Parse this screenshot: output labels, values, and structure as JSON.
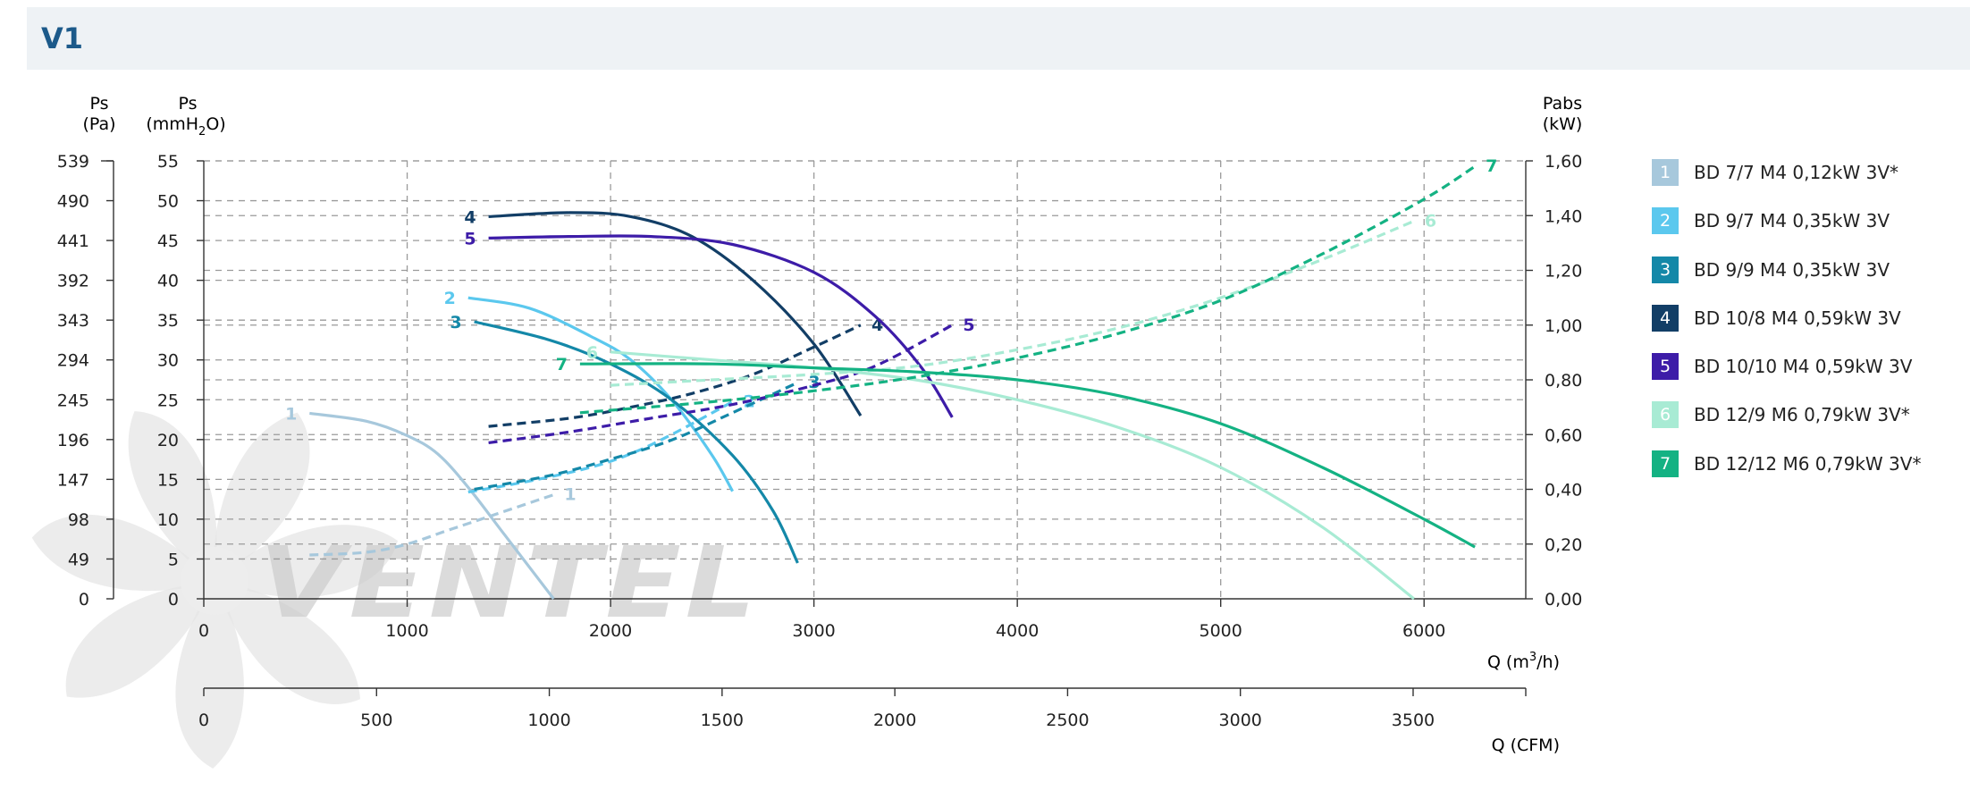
{
  "header": {
    "title": "V1"
  },
  "colors": {
    "1": "#a7c8dc",
    "2": "#5bc8ee",
    "3": "#1488a8",
    "4": "#123e66",
    "5": "#3d1ca8",
    "6": "#a8ebd4",
    "7": "#14b283"
  },
  "chart_data": {
    "type": "line",
    "axes": {
      "left_outer": {
        "label_line1": "Ps",
        "label_line2": "(Pa)",
        "ticks": [
          "0",
          "49",
          "98",
          "147",
          "196",
          "245",
          "294",
          "343",
          "392",
          "441",
          "490",
          "539"
        ]
      },
      "left_inner": {
        "label_line1": "Ps",
        "label_line2_a": "(mmH",
        "label_line2_sub": "2",
        "label_line2_b": "O)",
        "ticks": [
          "0",
          "5",
          "10",
          "15",
          "20",
          "25",
          "30",
          "35",
          "40",
          "45",
          "50",
          "55"
        ],
        "ylim": [
          0,
          55
        ]
      },
      "right": {
        "label_line1": "Pabs",
        "label_line2": "(kW)",
        "ticks": [
          "0,00",
          "0,20",
          "0,40",
          "0,60",
          "0,80",
          "1,00",
          "1,20",
          "1,40",
          "1,60"
        ],
        "ylim": [
          0,
          1.6
        ]
      },
      "x_m3h": {
        "label_a": "Q (m",
        "label_sup": "3",
        "label_b": "/h)",
        "ticks": [
          "0",
          "1000",
          "2000",
          "3000",
          "4000",
          "5000",
          "6000"
        ],
        "xlim": [
          0,
          6500
        ]
      },
      "x_cfm": {
        "label": "Q (CFM)",
        "ticks": [
          "0",
          "500",
          "1000",
          "1500",
          "2000",
          "2500",
          "3000",
          "3500"
        ],
        "xlim": [
          0,
          3826
        ]
      }
    },
    "grid": true,
    "series": [
      {
        "name": "1",
        "legend": "BD 7/7 M4 0,12kW 3V*",
        "color_key": "1",
        "label": "1",
        "pressure": {
          "x": [
            520,
            800,
            1000,
            1150,
            1300,
            1480,
            1720
          ],
          "y": [
            23.3,
            22.3,
            20.5,
            18.2,
            14.0,
            8.0,
            0
          ]
        },
        "power": {
          "x": [
            520,
            800,
            1000,
            1200,
            1400,
            1720
          ],
          "y": [
            0.16,
            0.17,
            0.2,
            0.25,
            0.3,
            0.38
          ]
        }
      },
      {
        "name": "2",
        "legend": "BD 9/7 M4 0,35kW 3V",
        "color_key": "2",
        "label": "2",
        "pressure": {
          "x": [
            1300,
            1600,
            1900,
            2100,
            2300,
            2500,
            2600
          ],
          "y": [
            37.8,
            36.5,
            33.0,
            30.0,
            25.0,
            18.0,
            13.5
          ]
        },
        "power": {
          "x": [
            1300,
            1600,
            1900,
            2100,
            2300,
            2600
          ],
          "y": [
            0.39,
            0.43,
            0.48,
            0.53,
            0.6,
            0.72
          ]
        }
      },
      {
        "name": "3",
        "legend": "BD 9/9 M4 0,35kW 3V",
        "color_key": "3",
        "label": "3",
        "pressure": {
          "x": [
            1330,
            1700,
            2000,
            2300,
            2600,
            2800,
            2920
          ],
          "y": [
            34.8,
            32.5,
            29.5,
            25.0,
            18.0,
            11.0,
            4.5
          ]
        },
        "power": {
          "x": [
            1330,
            1700,
            2000,
            2300,
            2600,
            2920
          ],
          "y": [
            0.4,
            0.45,
            0.51,
            0.58,
            0.68,
            0.79
          ]
        }
      },
      {
        "name": "4",
        "legend": "BD 10/8 M4 0,59kW 3V",
        "color_key": "4",
        "label": "4",
        "pressure": {
          "x": [
            1400,
            1800,
            2100,
            2400,
            2700,
            3000,
            3230
          ],
          "y": [
            48.0,
            48.5,
            48.0,
            45.5,
            40.0,
            32.0,
            23.0
          ]
        },
        "power": {
          "x": [
            1400,
            1800,
            2100,
            2400,
            2700,
            3000,
            3230
          ],
          "y": [
            0.63,
            0.66,
            0.7,
            0.75,
            0.82,
            0.92,
            1.0
          ]
        }
      },
      {
        "name": "5",
        "legend": "BD 10/10 M4 0,59kW 3V",
        "color_key": "5",
        "label": "5",
        "pressure": {
          "x": [
            1400,
            1800,
            2200,
            2600,
            3000,
            3300,
            3530,
            3680
          ],
          "y": [
            45.3,
            45.5,
            45.5,
            44.5,
            41.0,
            35.5,
            29.0,
            22.8
          ]
        },
        "power": {
          "x": [
            1400,
            1800,
            2200,
            2600,
            3000,
            3300,
            3680
          ],
          "y": [
            0.57,
            0.61,
            0.66,
            0.71,
            0.78,
            0.85,
            1.0
          ]
        }
      },
      {
        "name": "6",
        "legend": "BD 12/9 M6 0,79kW 3V*",
        "color_key": "6",
        "label": "6",
        "pressure": {
          "x": [
            2000,
            2500,
            3000,
            3500,
            4000,
            4500,
            5000,
            5500,
            5950
          ],
          "y": [
            31.0,
            30.0,
            29.0,
            27.5,
            25.0,
            21.5,
            16.5,
            9.0,
            0
          ]
        },
        "power": {
          "x": [
            2000,
            2500,
            3000,
            3500,
            4000,
            4500,
            5000,
            5500,
            5950
          ],
          "y": [
            0.78,
            0.8,
            0.82,
            0.85,
            0.91,
            0.99,
            1.1,
            1.24,
            1.38
          ]
        }
      },
      {
        "name": "7",
        "legend": "BD 12/12 M6 0,79kW 3V*",
        "color_key": "7",
        "label": "7",
        "pressure": {
          "x": [
            1850,
            2500,
            3000,
            3500,
            4000,
            4500,
            5000,
            5500,
            6000,
            6250
          ],
          "y": [
            29.5,
            29.5,
            29.0,
            28.5,
            27.5,
            25.5,
            22.0,
            16.5,
            10.0,
            6.5
          ]
        },
        "power": {
          "x": [
            1850,
            2500,
            3000,
            3500,
            4000,
            4500,
            5000,
            5500,
            6000,
            6250
          ],
          "y": [
            0.68,
            0.72,
            0.76,
            0.81,
            0.88,
            0.97,
            1.09,
            1.26,
            1.46,
            1.58
          ]
        }
      }
    ]
  },
  "watermark": {
    "text": "VENTEL"
  }
}
